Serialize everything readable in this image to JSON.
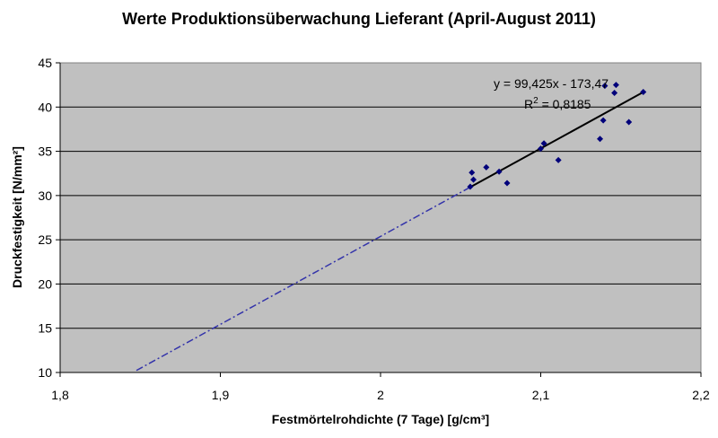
{
  "chart_data": {
    "type": "scatter",
    "title": "Werte Produktionsüberwachung Lieferant (April-August 2011)",
    "xlabel": "Festmörtelrohdichte (7 Tage) [g/cm³]",
    "ylabel": "Druckfestigkeit [N/mm²]",
    "xlim": [
      1.8,
      2.2
    ],
    "ylim": [
      10,
      45
    ],
    "x_ticks": [
      1.8,
      1.9,
      2.0,
      2.1,
      2.2
    ],
    "x_tick_labels": [
      "1,8",
      "1,9",
      "2",
      "2,1",
      "2,2"
    ],
    "y_ticks": [
      10,
      15,
      20,
      25,
      30,
      35,
      40,
      45
    ],
    "y_tick_labels": [
      "10",
      "15",
      "20",
      "25",
      "30",
      "35",
      "40",
      "45"
    ],
    "grid": "horizontal",
    "legend": "none",
    "plot_background": "#c0c0c0",
    "point_color": "#00007a",
    "series": [
      {
        "points": [
          {
            "x": 2.056,
            "y": 31.0
          },
          {
            "x": 2.057,
            "y": 32.6
          },
          {
            "x": 2.058,
            "y": 31.8
          },
          {
            "x": 2.066,
            "y": 33.2
          },
          {
            "x": 2.074,
            "y": 32.7
          },
          {
            "x": 2.079,
            "y": 31.4
          },
          {
            "x": 2.1,
            "y": 35.3
          },
          {
            "x": 2.102,
            "y": 35.9
          },
          {
            "x": 2.111,
            "y": 34.0
          },
          {
            "x": 2.137,
            "y": 36.4
          },
          {
            "x": 2.139,
            "y": 38.5
          },
          {
            "x": 2.14,
            "y": 42.4
          },
          {
            "x": 2.146,
            "y": 41.6
          },
          {
            "x": 2.147,
            "y": 42.5
          },
          {
            "x": 2.155,
            "y": 38.3
          },
          {
            "x": 2.164,
            "y": 41.7
          }
        ]
      }
    ],
    "trendline": {
      "slope": 99.425,
      "intercept": -173.47,
      "solid_range": [
        2.056,
        2.164
      ],
      "dashed_range": [
        1.8476,
        2.056
      ],
      "solid_color": "#000000",
      "dashed_color": "#3333aa"
    },
    "annotations": {
      "equation": "y = 99,425x - 173,47",
      "r_squared_prefix": "R",
      "r_squared_sup": "2",
      "r_squared_value": " = 0,8185"
    }
  }
}
